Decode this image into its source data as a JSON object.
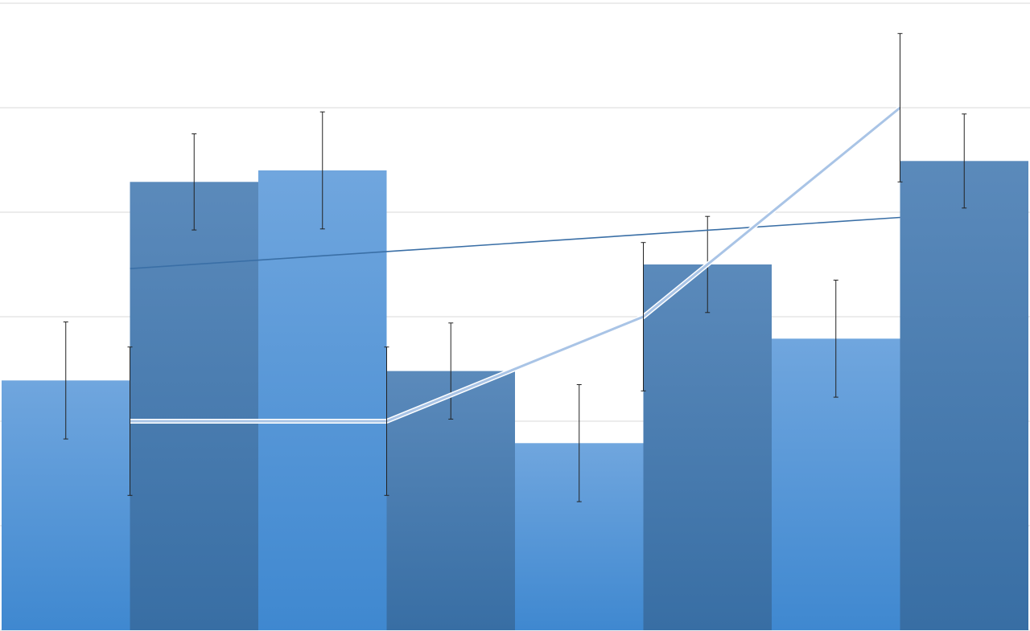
{
  "chart_data": {
    "type": "bar",
    "title": "",
    "xlabel": "",
    "ylabel": "",
    "ylim": [
      0,
      6
    ],
    "grid": true,
    "legend": "none",
    "categories": [
      "",
      "",
      "",
      "",
      "",
      "",
      "",
      ""
    ],
    "bars": {
      "values": [
        2.39,
        4.29,
        4.4,
        2.48,
        1.79,
        3.5,
        2.79,
        4.49
      ],
      "errors": [
        0.56,
        0.46,
        0.56,
        0.46,
        0.56,
        0.46,
        0.56,
        0.45
      ],
      "colors": [
        "light",
        "dark",
        "light",
        "dark",
        "light",
        "dark",
        "light",
        "dark"
      ]
    },
    "line": {
      "x": [
        1,
        3,
        5,
        7
      ],
      "values": [
        2,
        2,
        3,
        5
      ],
      "errors": [
        0.71,
        0.71,
        0.71,
        0.71
      ]
    },
    "trendline": {
      "x": [
        1,
        7
      ],
      "values": [
        3.46,
        3.95
      ]
    },
    "palette": {
      "light_top": "#70a6de",
      "light_bottom": "#3f88d0",
      "dark_top": "#5b8abb",
      "dark_bottom": "#386ea4",
      "line": "#a9c4e6",
      "trendline": "#3a6fa6",
      "grid": "#d9d9d9",
      "error": "#222222"
    }
  }
}
